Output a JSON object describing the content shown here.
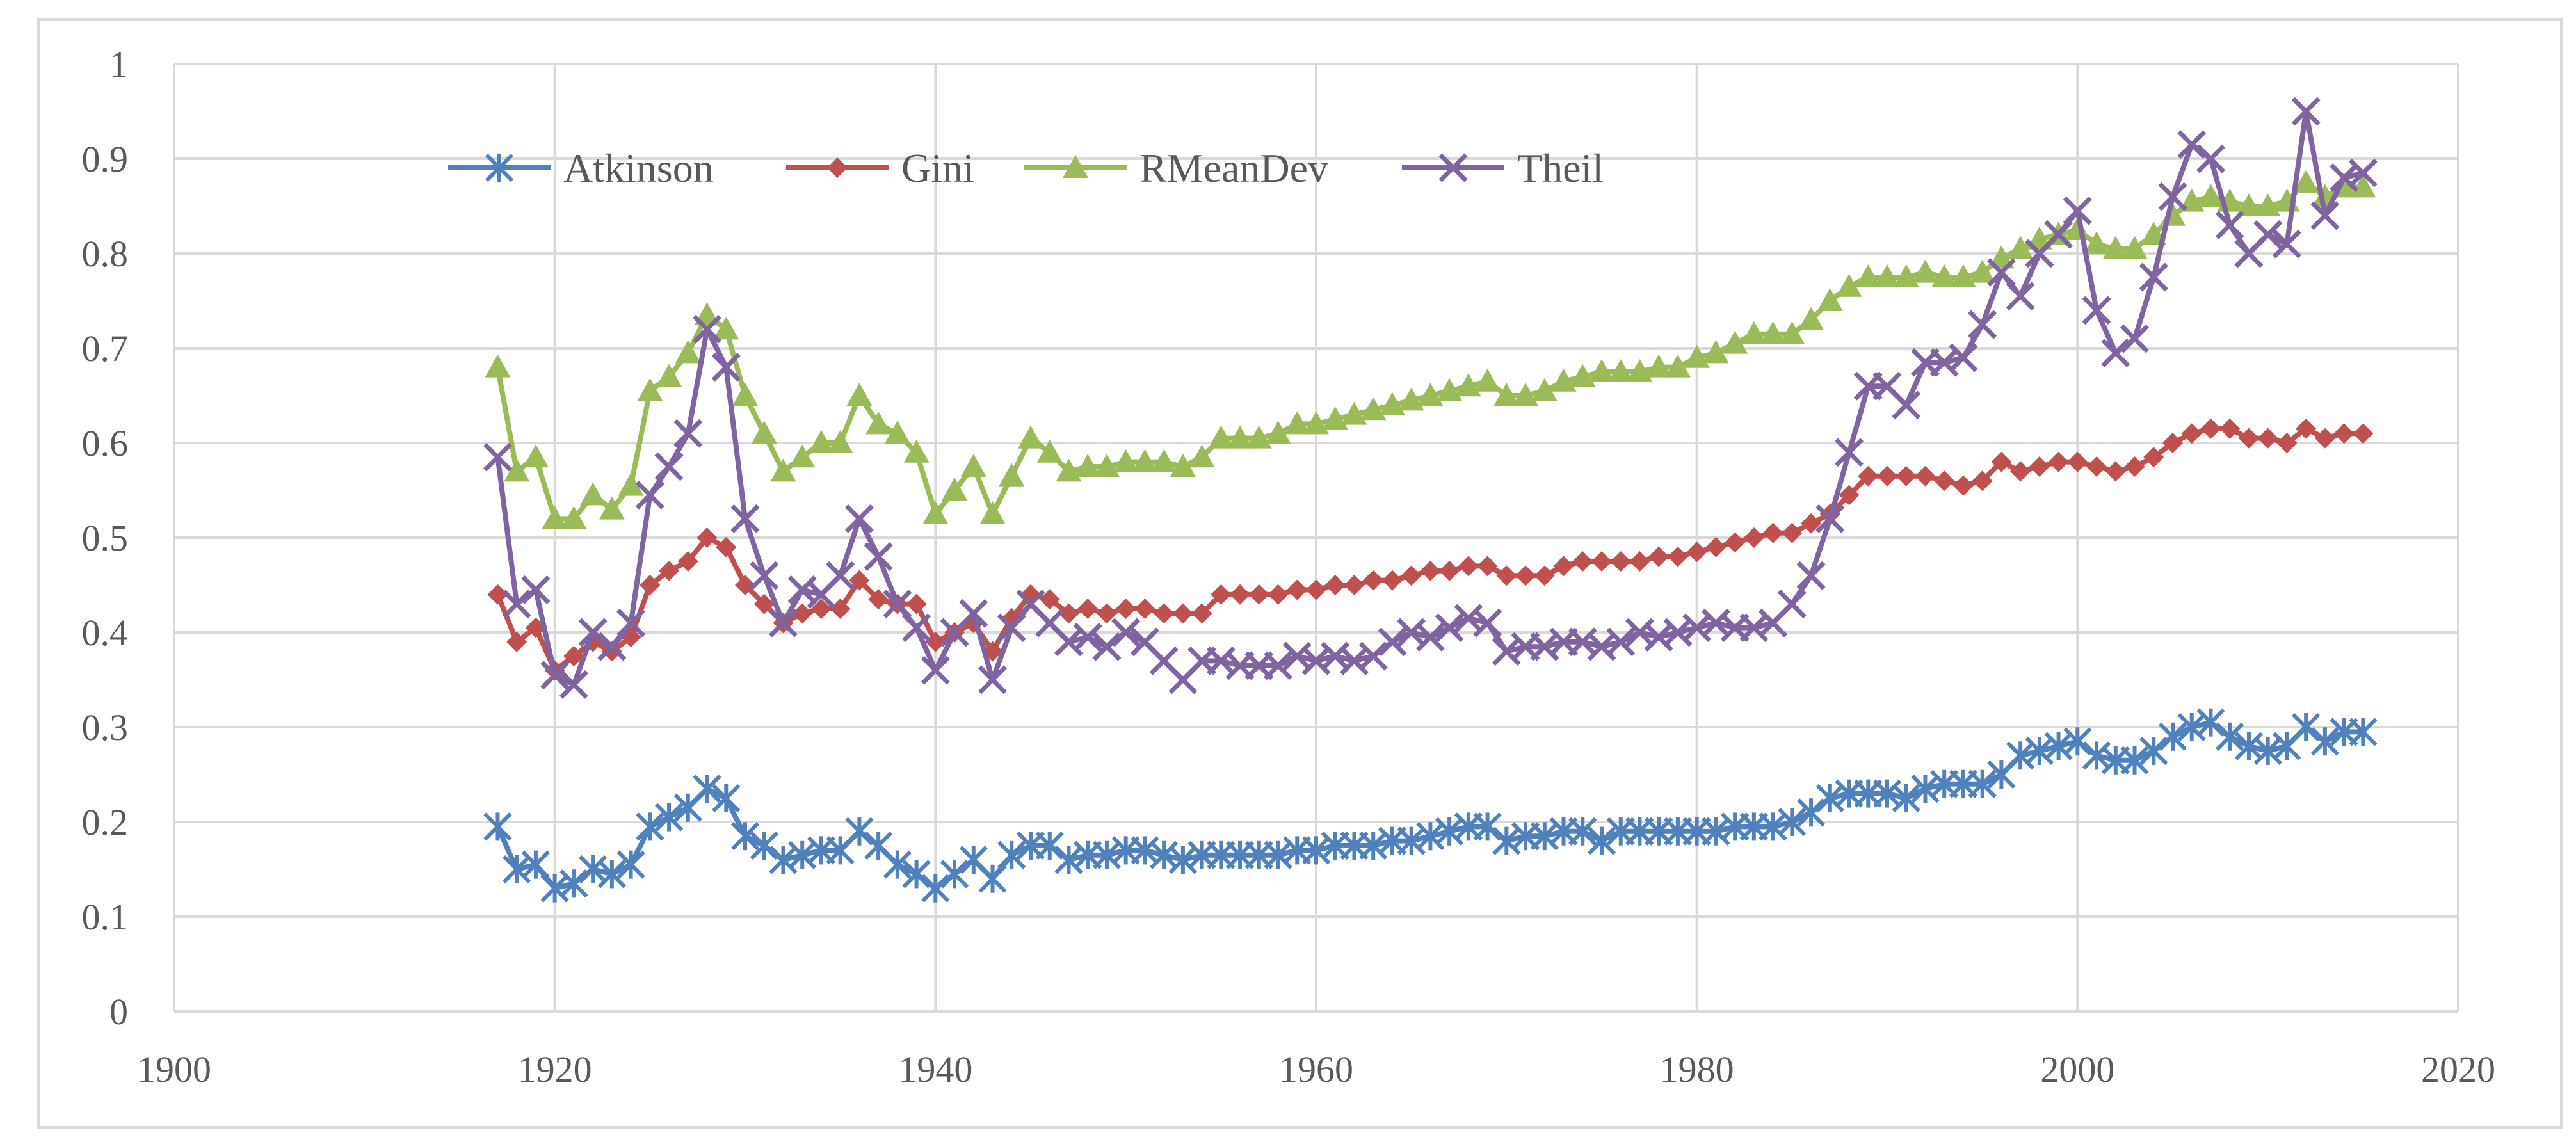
{
  "chart_data": {
    "type": "line",
    "title": "",
    "xlabel": "",
    "ylabel": "",
    "xlim": [
      1900,
      2020
    ],
    "ylim": [
      0,
      1
    ],
    "x_ticks": [
      1900,
      1920,
      1940,
      1960,
      1980,
      2000,
      2020
    ],
    "y_ticks": [
      0,
      0.1,
      0.2,
      0.3,
      0.4,
      0.5,
      0.6,
      0.7,
      0.8,
      0.9,
      1
    ],
    "x_tick_labels": [
      "1900",
      "1920",
      "1940",
      "1960",
      "1980",
      "2000",
      "2020"
    ],
    "y_tick_labels": [
      "0",
      "0.1",
      "0.2",
      "0.3",
      "0.4",
      "0.5",
      "0.6",
      "0.7",
      "0.8",
      "0.9",
      "1"
    ],
    "grid": true,
    "legend_position": "top-left",
    "x": [
      1917,
      1918,
      1919,
      1920,
      1921,
      1922,
      1923,
      1924,
      1925,
      1926,
      1927,
      1928,
      1929,
      1930,
      1931,
      1932,
      1933,
      1934,
      1935,
      1936,
      1937,
      1938,
      1939,
      1940,
      1941,
      1942,
      1943,
      1944,
      1945,
      1946,
      1947,
      1948,
      1949,
      1950,
      1951,
      1952,
      1953,
      1954,
      1955,
      1956,
      1957,
      1958,
      1959,
      1960,
      1961,
      1962,
      1963,
      1964,
      1965,
      1966,
      1967,
      1968,
      1969,
      1970,
      1971,
      1972,
      1973,
      1974,
      1975,
      1976,
      1977,
      1978,
      1979,
      1980,
      1981,
      1982,
      1983,
      1984,
      1985,
      1986,
      1987,
      1988,
      1989,
      1990,
      1991,
      1992,
      1993,
      1994,
      1995,
      1996,
      1997,
      1998,
      1999,
      2000,
      2001,
      2002,
      2003,
      2004,
      2005,
      2006,
      2007,
      2008,
      2009,
      2010,
      2011,
      2012,
      2013,
      2014,
      2015
    ],
    "series": [
      {
        "name": "Atkinson",
        "color": "#4f81bd",
        "marker": "asterisk",
        "values": [
          0.195,
          0.15,
          0.155,
          0.13,
          0.135,
          0.15,
          0.145,
          0.155,
          0.195,
          0.205,
          0.215,
          0.235,
          0.225,
          0.185,
          0.175,
          0.16,
          0.165,
          0.17,
          0.17,
          0.19,
          0.175,
          0.155,
          0.145,
          0.13,
          0.145,
          0.16,
          0.14,
          0.165,
          0.175,
          0.175,
          0.16,
          0.165,
          0.165,
          0.17,
          0.17,
          0.165,
          0.16,
          0.165,
          0.165,
          0.165,
          0.165,
          0.165,
          0.17,
          0.17,
          0.175,
          0.175,
          0.175,
          0.18,
          0.18,
          0.185,
          0.19,
          0.195,
          0.195,
          0.18,
          0.185,
          0.185,
          0.19,
          0.19,
          0.18,
          0.19,
          0.19,
          0.19,
          0.19,
          0.19,
          0.19,
          0.195,
          0.195,
          0.195,
          0.2,
          0.21,
          0.225,
          0.23,
          0.23,
          0.23,
          0.225,
          0.235,
          0.24,
          0.24,
          0.24,
          0.25,
          0.27,
          0.275,
          0.28,
          0.285,
          0.27,
          0.265,
          0.265,
          0.275,
          0.29,
          0.3,
          0.305,
          0.29,
          0.28,
          0.275,
          0.28,
          0.3,
          0.285,
          0.295,
          0.295
        ]
      },
      {
        "name": "Gini",
        "color": "#c0504d",
        "marker": "diamond",
        "values": [
          0.44,
          0.39,
          0.405,
          0.36,
          0.375,
          0.39,
          0.38,
          0.395,
          0.45,
          0.465,
          0.475,
          0.5,
          0.49,
          0.45,
          0.43,
          0.41,
          0.42,
          0.425,
          0.425,
          0.455,
          0.435,
          0.43,
          0.43,
          0.39,
          0.4,
          0.41,
          0.38,
          0.415,
          0.44,
          0.435,
          0.42,
          0.425,
          0.42,
          0.425,
          0.425,
          0.42,
          0.42,
          0.42,
          0.44,
          0.44,
          0.44,
          0.44,
          0.445,
          0.445,
          0.45,
          0.45,
          0.455,
          0.455,
          0.46,
          0.465,
          0.465,
          0.47,
          0.47,
          0.46,
          0.46,
          0.46,
          0.47,
          0.475,
          0.475,
          0.475,
          0.475,
          0.48,
          0.48,
          0.485,
          0.49,
          0.495,
          0.5,
          0.505,
          0.505,
          0.515,
          0.525,
          0.545,
          0.565,
          0.565,
          0.565,
          0.565,
          0.56,
          0.555,
          0.56,
          0.58,
          0.57,
          0.575,
          0.58,
          0.58,
          0.575,
          0.57,
          0.575,
          0.585,
          0.6,
          0.61,
          0.615,
          0.615,
          0.605,
          0.605,
          0.6,
          0.615,
          0.605,
          0.61,
          0.61
        ]
      },
      {
        "name": "RMeanDev",
        "color": "#9bbb59",
        "marker": "triangle",
        "values": [
          0.68,
          0.57,
          0.585,
          0.52,
          0.52,
          0.545,
          0.53,
          0.555,
          0.655,
          0.67,
          0.695,
          0.735,
          0.72,
          0.65,
          0.61,
          0.57,
          0.585,
          0.6,
          0.6,
          0.65,
          0.62,
          0.61,
          0.59,
          0.525,
          0.55,
          0.575,
          0.525,
          0.565,
          0.605,
          0.59,
          0.57,
          0.575,
          0.575,
          0.58,
          0.58,
          0.58,
          0.575,
          0.585,
          0.605,
          0.605,
          0.605,
          0.61,
          0.62,
          0.62,
          0.625,
          0.63,
          0.635,
          0.64,
          0.645,
          0.65,
          0.655,
          0.66,
          0.665,
          0.65,
          0.65,
          0.655,
          0.665,
          0.67,
          0.675,
          0.675,
          0.675,
          0.68,
          0.68,
          0.69,
          0.695,
          0.705,
          0.715,
          0.715,
          0.715,
          0.73,
          0.75,
          0.765,
          0.775,
          0.775,
          0.775,
          0.78,
          0.775,
          0.775,
          0.78,
          0.795,
          0.805,
          0.815,
          0.82,
          0.825,
          0.81,
          0.805,
          0.805,
          0.82,
          0.84,
          0.855,
          0.86,
          0.855,
          0.85,
          0.85,
          0.855,
          0.875,
          0.86,
          0.87,
          0.87
        ]
      },
      {
        "name": "Theil",
        "color": "#8064a2",
        "marker": "x",
        "values": [
          0.585,
          0.43,
          0.445,
          0.355,
          0.345,
          0.4,
          0.385,
          0.41,
          0.545,
          0.575,
          0.61,
          0.72,
          0.68,
          0.52,
          0.46,
          0.41,
          0.445,
          0.44,
          0.46,
          0.52,
          0.48,
          0.43,
          0.405,
          0.36,
          0.4,
          0.42,
          0.35,
          0.405,
          0.43,
          0.41,
          0.39,
          0.395,
          0.385,
          0.4,
          0.39,
          0.37,
          0.35,
          0.37,
          0.37,
          0.365,
          0.365,
          0.365,
          0.375,
          0.37,
          0.375,
          0.37,
          0.375,
          0.39,
          0.4,
          0.395,
          0.405,
          0.415,
          0.41,
          0.38,
          0.385,
          0.385,
          0.39,
          0.39,
          0.385,
          0.39,
          0.4,
          0.395,
          0.4,
          0.405,
          0.41,
          0.405,
          0.405,
          0.41,
          0.43,
          0.46,
          0.52,
          0.59,
          0.66,
          0.66,
          0.64,
          0.685,
          0.685,
          0.69,
          0.725,
          0.78,
          0.755,
          0.8,
          0.82,
          0.845,
          0.74,
          0.695,
          0.71,
          0.775,
          0.86,
          0.915,
          0.9,
          0.83,
          0.8,
          0.82,
          0.81,
          0.95,
          0.84,
          0.88,
          0.885
        ]
      }
    ]
  }
}
